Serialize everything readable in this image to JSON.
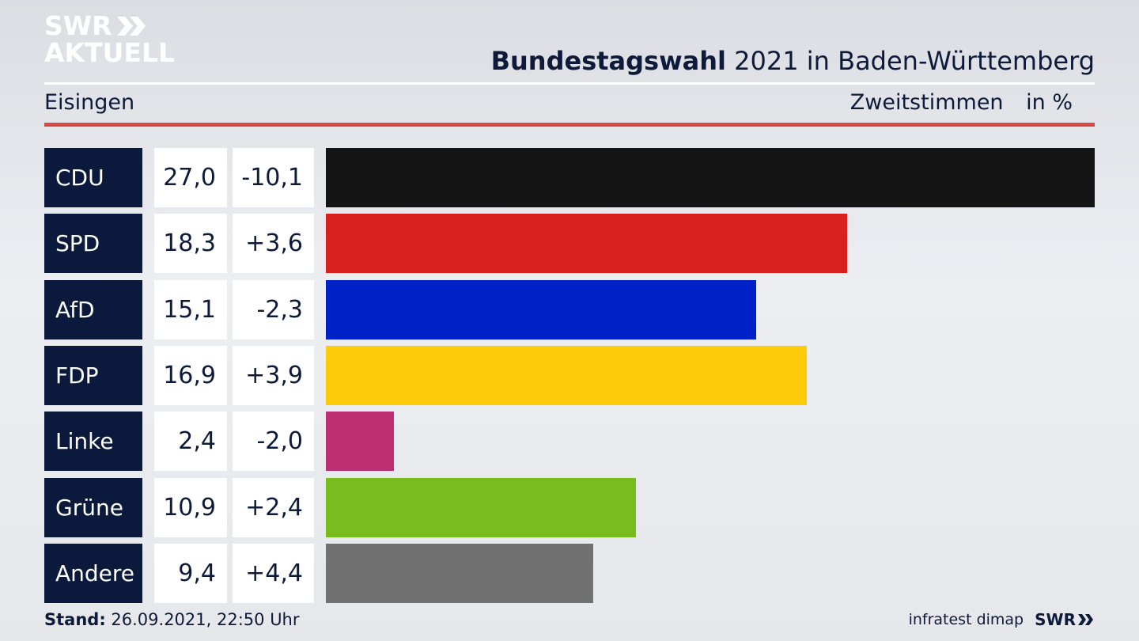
{
  "brand": {
    "line1": "SWR",
    "line2": "AKTUELL"
  },
  "header": {
    "title_bold": "Bundestagswahl",
    "title_rest": "2021 in Baden-Württemberg",
    "region": "Eisingen",
    "measure": "Zweitstimmen",
    "unit": "in %"
  },
  "chart_data": {
    "type": "bar",
    "categories": [
      "CDU",
      "SPD",
      "AfD",
      "FDP",
      "Linke",
      "Grüne",
      "Andere"
    ],
    "values": [
      27.0,
      18.3,
      15.1,
      16.9,
      2.4,
      10.9,
      9.4
    ],
    "value_labels": [
      "27,0",
      "18,3",
      "15,1",
      "16,9",
      "2,4",
      "10,9",
      "9,4"
    ],
    "changes": [
      -10.1,
      3.6,
      -2.3,
      3.9,
      -2.0,
      2.4,
      4.4
    ],
    "change_labels": [
      "-10,1",
      "+3,6",
      "-2,3",
      "+3,9",
      "-2,0",
      "+2,4",
      "+4,4"
    ],
    "colors": [
      "#141414",
      "#d8201f",
      "#0021c8",
      "#fecb0a",
      "#be2e73",
      "#78bd1d",
      "#717172"
    ],
    "xlim": [
      0,
      27.0
    ],
    "orientation": "horizontal"
  },
  "footer": {
    "stand_label": "Stand:",
    "stand_value": "26.09.2021, 22:50 Uhr",
    "source": "infratest dimap",
    "logo": "SWR"
  }
}
